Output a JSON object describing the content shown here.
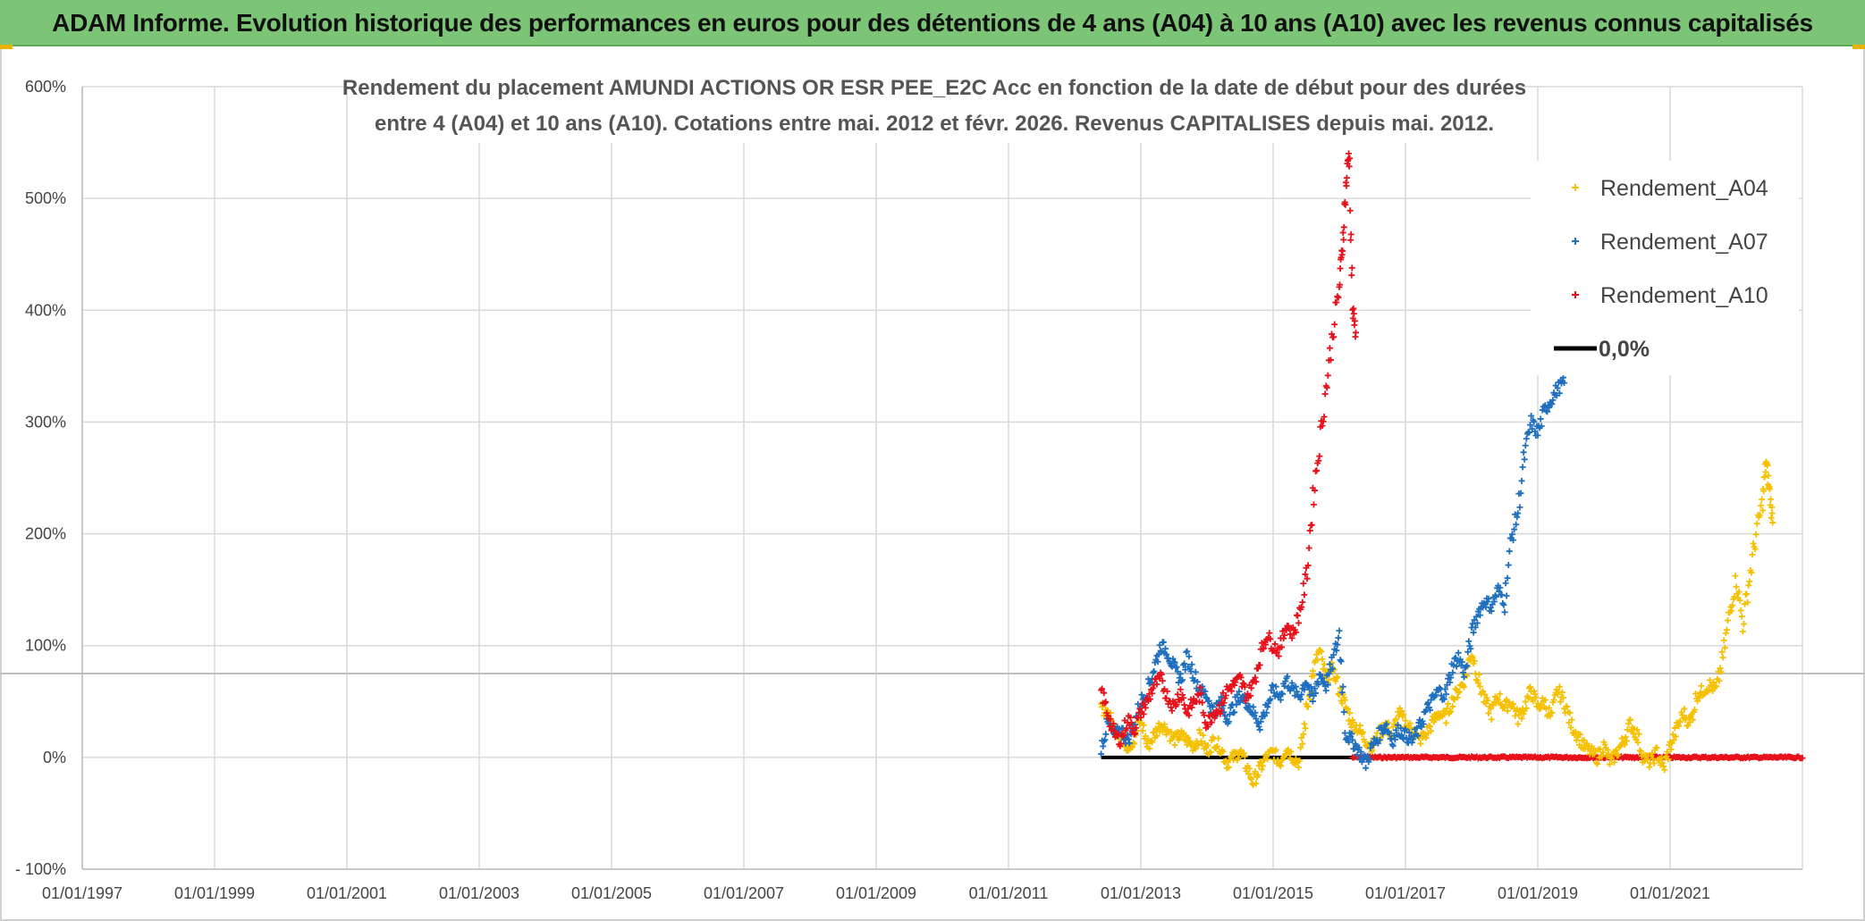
{
  "banner": {
    "title": "ADAM Informe. Evolution historique des performances en euros pour des détentions de 4 ans (A04) à 10 ans (A10) avec les revenus connus capitalisés"
  },
  "colors": {
    "banner_bg": "#7cc576",
    "a04": "#f5c000",
    "a07": "#1f6fbf",
    "a10": "#e8101a",
    "zero": "#000000",
    "grid": "#d9d9d9"
  },
  "chart_data": {
    "type": "scatter",
    "title_lines": [
      "Rendement du placement AMUNDI ACTIONS OR ESR PEE_E2C Acc en fonction de la date de début pour des durées",
      "entre 4 (A04) et 10 ans (A10). Cotations entre mai. 2012 et févr. 2026. Revenus CAPITALISES depuis mai. 2012."
    ],
    "xlabel": "",
    "ylabel": "",
    "x_range": [
      1997.0,
      2023.0
    ],
    "ylim": [
      -100,
      600
    ],
    "y_ticks": [
      -100,
      0,
      100,
      200,
      300,
      400,
      500,
      600
    ],
    "y_tick_labels": [
      "- 100%",
      "0%",
      "100%",
      "200%",
      "300%",
      "400%",
      "500%",
      "600%"
    ],
    "x_ticks": [
      1997,
      1999,
      2001,
      2003,
      2005,
      2007,
      2009,
      2011,
      2013,
      2015,
      2017,
      2019,
      2021
    ],
    "x_tick_labels": [
      "01/01/1997",
      "01/01/1999",
      "01/01/2001",
      "01/01/2003",
      "01/01/2005",
      "01/01/2007",
      "01/01/2009",
      "01/01/2011",
      "01/01/2013",
      "01/01/2015",
      "01/01/2017",
      "01/01/2019",
      "01/01/2021"
    ],
    "reference_line_y": 75,
    "legend_position": "top-right",
    "series": [
      {
        "name": "Rendement_A04",
        "color": "#f5c000",
        "points": [
          [
            2012.4,
            45
          ],
          [
            2012.5,
            40
          ],
          [
            2012.6,
            25
          ],
          [
            2012.7,
            20
          ],
          [
            2012.8,
            10
          ],
          [
            2012.9,
            15
          ],
          [
            2013.0,
            35
          ],
          [
            2013.1,
            10
          ],
          [
            2013.2,
            20
          ],
          [
            2013.3,
            30
          ],
          [
            2013.4,
            25
          ],
          [
            2013.5,
            15
          ],
          [
            2013.6,
            20
          ],
          [
            2013.7,
            15
          ],
          [
            2013.8,
            10
          ],
          [
            2013.9,
            20
          ],
          [
            2014.0,
            5
          ],
          [
            2014.1,
            15
          ],
          [
            2014.2,
            10
          ],
          [
            2014.3,
            -5
          ],
          [
            2014.4,
            0
          ],
          [
            2014.5,
            5
          ],
          [
            2014.6,
            -8
          ],
          [
            2014.7,
            -22
          ],
          [
            2014.8,
            -10
          ],
          [
            2014.9,
            0
          ],
          [
            2015.0,
            5
          ],
          [
            2015.1,
            -5
          ],
          [
            2015.2,
            10
          ],
          [
            2015.3,
            0
          ],
          [
            2015.4,
            -5
          ],
          [
            2015.5,
            40
          ],
          [
            2015.6,
            75
          ],
          [
            2015.7,
            95
          ],
          [
            2015.8,
            70
          ],
          [
            2015.9,
            80
          ],
          [
            2016.0,
            60
          ],
          [
            2016.1,
            45
          ],
          [
            2016.2,
            30
          ],
          [
            2016.3,
            25
          ],
          [
            2016.4,
            15
          ],
          [
            2016.5,
            10
          ],
          [
            2016.6,
            20
          ],
          [
            2016.7,
            30
          ],
          [
            2016.8,
            20
          ],
          [
            2016.9,
            40
          ],
          [
            2017.0,
            30
          ],
          [
            2017.1,
            25
          ],
          [
            2017.2,
            15
          ],
          [
            2017.3,
            20
          ],
          [
            2017.4,
            30
          ],
          [
            2017.5,
            40
          ],
          [
            2017.6,
            35
          ],
          [
            2017.7,
            50
          ],
          [
            2017.8,
            60
          ],
          [
            2017.9,
            70
          ],
          [
            2018.0,
            95
          ],
          [
            2018.1,
            70
          ],
          [
            2018.2,
            50
          ],
          [
            2018.3,
            40
          ],
          [
            2018.4,
            55
          ],
          [
            2018.5,
            45
          ],
          [
            2018.6,
            50
          ],
          [
            2018.7,
            35
          ],
          [
            2018.8,
            45
          ],
          [
            2018.9,
            60
          ],
          [
            2019.0,
            45
          ],
          [
            2019.1,
            50
          ],
          [
            2019.2,
            35
          ],
          [
            2019.3,
            60
          ],
          [
            2019.4,
            50
          ],
          [
            2019.5,
            30
          ],
          [
            2019.6,
            20
          ],
          [
            2019.7,
            10
          ],
          [
            2019.8,
            5
          ],
          [
            2019.9,
            0
          ],
          [
            2020.0,
            10
          ],
          [
            2020.1,
            -5
          ],
          [
            2020.2,
            5
          ],
          [
            2020.3,
            15
          ],
          [
            2020.4,
            30
          ],
          [
            2020.5,
            20
          ],
          [
            2020.6,
            0
          ],
          [
            2020.7,
            -5
          ],
          [
            2020.8,
            5
          ],
          [
            2020.9,
            -10
          ],
          [
            2021.0,
            10
          ],
          [
            2021.1,
            25
          ],
          [
            2021.2,
            40
          ],
          [
            2021.3,
            30
          ],
          [
            2021.4,
            55
          ],
          [
            2021.5,
            60
          ],
          [
            2021.6,
            65
          ],
          [
            2021.7,
            60
          ],
          [
            2021.8,
            90
          ],
          [
            2021.9,
            130
          ],
          [
            2022.0,
            160
          ],
          [
            2022.1,
            120
          ],
          [
            2022.2,
            160
          ],
          [
            2022.3,
            200
          ],
          [
            2022.4,
            230
          ],
          [
            2022.45,
            265
          ],
          [
            2022.5,
            240
          ],
          [
            2022.55,
            210
          ]
        ]
      },
      {
        "name": "Rendement_A07",
        "color": "#1f6fbf",
        "points": [
          [
            2012.4,
            10
          ],
          [
            2012.5,
            30
          ],
          [
            2012.6,
            20
          ],
          [
            2012.7,
            25
          ],
          [
            2012.8,
            15
          ],
          [
            2012.9,
            30
          ],
          [
            2013.0,
            50
          ],
          [
            2013.1,
            60
          ],
          [
            2013.2,
            80
          ],
          [
            2013.3,
            100
          ],
          [
            2013.4,
            95
          ],
          [
            2013.5,
            80
          ],
          [
            2013.6,
            70
          ],
          [
            2013.7,
            90
          ],
          [
            2013.8,
            75
          ],
          [
            2013.9,
            60
          ],
          [
            2014.0,
            55
          ],
          [
            2014.1,
            40
          ],
          [
            2014.2,
            50
          ],
          [
            2014.3,
            35
          ],
          [
            2014.4,
            45
          ],
          [
            2014.5,
            55
          ],
          [
            2014.6,
            50
          ],
          [
            2014.7,
            40
          ],
          [
            2014.8,
            30
          ],
          [
            2014.9,
            45
          ],
          [
            2015.0,
            60
          ],
          [
            2015.1,
            55
          ],
          [
            2015.2,
            70
          ],
          [
            2015.3,
            60
          ],
          [
            2015.4,
            55
          ],
          [
            2015.5,
            70
          ],
          [
            2015.6,
            50
          ],
          [
            2015.7,
            75
          ],
          [
            2015.8,
            65
          ],
          [
            2015.9,
            85
          ],
          [
            2016.0,
            110
          ],
          [
            2016.1,
            20
          ],
          [
            2016.2,
            15
          ],
          [
            2016.3,
            5
          ],
          [
            2016.4,
            -5
          ],
          [
            2016.5,
            10
          ],
          [
            2016.6,
            20
          ],
          [
            2016.7,
            30
          ],
          [
            2016.8,
            15
          ],
          [
            2016.9,
            25
          ],
          [
            2017.0,
            20
          ],
          [
            2017.1,
            15
          ],
          [
            2017.2,
            25
          ],
          [
            2017.3,
            40
          ],
          [
            2017.4,
            50
          ],
          [
            2017.5,
            60
          ],
          [
            2017.6,
            55
          ],
          [
            2017.7,
            80
          ],
          [
            2017.8,
            90
          ],
          [
            2017.9,
            75
          ],
          [
            2018.0,
            110
          ],
          [
            2018.1,
            130
          ],
          [
            2018.2,
            140
          ],
          [
            2018.3,
            135
          ],
          [
            2018.4,
            150
          ],
          [
            2018.5,
            140
          ],
          [
            2018.6,
            195
          ],
          [
            2018.7,
            220
          ],
          [
            2018.8,
            270
          ],
          [
            2018.9,
            300
          ],
          [
            2019.0,
            290
          ],
          [
            2019.1,
            310
          ],
          [
            2019.2,
            320
          ],
          [
            2019.3,
            330
          ],
          [
            2019.4,
            335
          ]
        ]
      },
      {
        "name": "Rendement_A10",
        "color": "#e8101a",
        "points": [
          [
            2012.4,
            60
          ],
          [
            2012.5,
            40
          ],
          [
            2012.6,
            20
          ],
          [
            2012.7,
            15
          ],
          [
            2012.8,
            35
          ],
          [
            2012.9,
            25
          ],
          [
            2013.0,
            40
          ],
          [
            2013.1,
            50
          ],
          [
            2013.2,
            65
          ],
          [
            2013.3,
            70
          ],
          [
            2013.4,
            55
          ],
          [
            2013.5,
            45
          ],
          [
            2013.6,
            60
          ],
          [
            2013.7,
            40
          ],
          [
            2013.8,
            50
          ],
          [
            2013.9,
            55
          ],
          [
            2014.0,
            30
          ],
          [
            2014.1,
            40
          ],
          [
            2014.2,
            45
          ],
          [
            2014.3,
            60
          ],
          [
            2014.4,
            65
          ],
          [
            2014.5,
            70
          ],
          [
            2014.6,
            55
          ],
          [
            2014.7,
            65
          ],
          [
            2014.8,
            90
          ],
          [
            2014.9,
            110
          ],
          [
            2015.0,
            100
          ],
          [
            2015.1,
            95
          ],
          [
            2015.2,
            120
          ],
          [
            2015.3,
            110
          ],
          [
            2015.4,
            130
          ],
          [
            2015.5,
            160
          ],
          [
            2015.6,
            230
          ],
          [
            2015.7,
            280
          ],
          [
            2015.8,
            330
          ],
          [
            2015.9,
            380
          ],
          [
            2016.0,
            420
          ],
          [
            2016.05,
            460
          ],
          [
            2016.1,
            510
          ],
          [
            2016.15,
            545
          ],
          [
            2016.2,
            400
          ],
          [
            2016.25,
            380
          ]
        ]
      },
      {
        "name": "0,0%",
        "color": "#000000",
        "points": [
          [
            2012.4,
            0
          ],
          [
            2022.5,
            0
          ]
        ]
      }
    ],
    "a10_zero_band": [
      2016.2,
      2023.0
    ]
  }
}
